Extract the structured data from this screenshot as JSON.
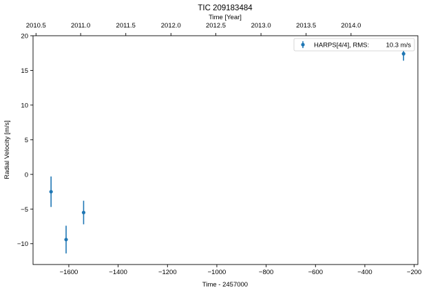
{
  "chart_data": {
    "type": "scatter",
    "title": "TIC 209183484",
    "xlabel": "Time - 2457000",
    "ylabel": "Radial Velocity [m/s]",
    "top_xlabel": "Time [Year]",
    "xlim": [
      -1745,
      -185
    ],
    "ylim": [
      -13,
      20
    ],
    "xticks": [
      -1600,
      -1400,
      -1200,
      -1000,
      -800,
      -600,
      -400,
      -200
    ],
    "xtick_labels": [
      "−1600",
      "−1400",
      "−1200",
      "−1000",
      "−800",
      "−600",
      "−400",
      "−200"
    ],
    "yticks": [
      -10,
      -5,
      0,
      5,
      10,
      15,
      20
    ],
    "ytick_labels": [
      "−10",
      "−5",
      "0",
      "5",
      "10",
      "15",
      "20"
    ],
    "top_xticks": [
      -1733,
      -1552,
      -1369,
      -1186,
      -1004,
      -821,
      -638,
      -456
    ],
    "top_xtick_labels": [
      "2010.5",
      "2011.0",
      "2011.5",
      "2012.0",
      "2012.5",
      "2013.0",
      "2013.5",
      "2014.0"
    ],
    "grid": false,
    "legend_position": "top-right",
    "series": [
      {
        "name": "HARPS[4/4], RMS:",
        "rms": "10.3 m/s",
        "color": "#1f77b4",
        "x": [
          -1672,
          -1611,
          -1540,
          -243
        ],
        "y": [
          -2.5,
          -9.4,
          -5.5,
          17.4
        ],
        "yerr": [
          2.2,
          2.0,
          1.7,
          1.0
        ]
      }
    ]
  }
}
